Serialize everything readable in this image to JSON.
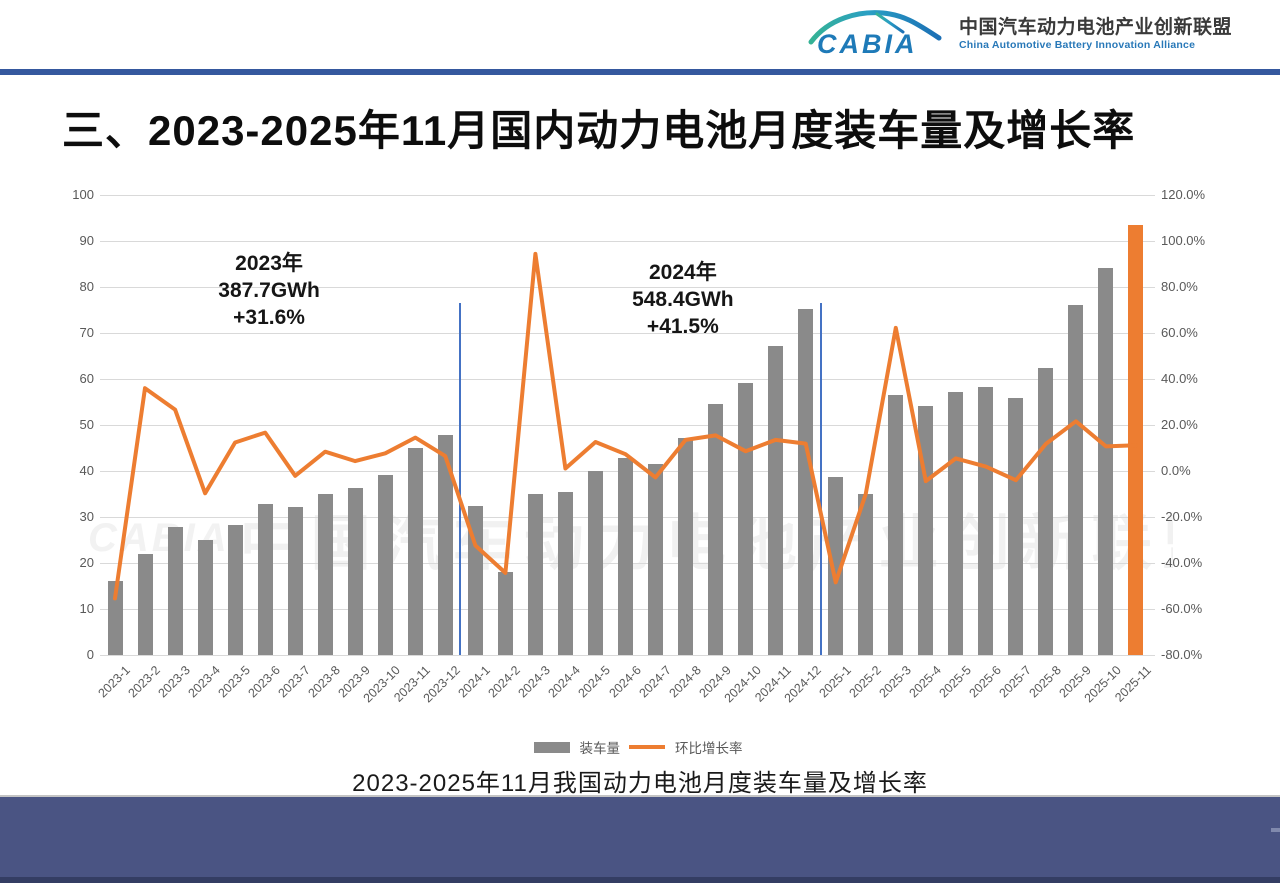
{
  "header": {
    "logo_text": "CABIA",
    "org_name_zh": "中国汽车动力电池产业创新联盟",
    "org_name_en": "China Automotive Battery Innovation Alliance"
  },
  "title": "三、2023-2025年11月国内动力电池月度装车量及增长率",
  "chart_data": {
    "type": "combo",
    "categories": [
      "2023-1",
      "2023-2",
      "2023-3",
      "2023-4",
      "2023-5",
      "2023-6",
      "2023-7",
      "2023-8",
      "2023-9",
      "2023-10",
      "2023-11",
      "2023-12",
      "2024-1",
      "2024-2",
      "2024-3",
      "2024-4",
      "2024-5",
      "2024-6",
      "2024-7",
      "2024-8",
      "2024-9",
      "2024-10",
      "2024-11",
      "2024-12",
      "2025-1",
      "2025-2",
      "2025-3",
      "2025-4",
      "2025-5",
      "2025-6",
      "2025-7",
      "2025-8",
      "2025-9",
      "2025-10",
      "2025-11"
    ],
    "series": [
      {
        "name": "装车量",
        "type": "bar",
        "unit": "GWh",
        "color": "#8a8a8a",
        "last_bar_color": "#ED7D31",
        "values": [
          16.1,
          21.9,
          27.8,
          25.1,
          28.2,
          32.9,
          32.2,
          34.9,
          36.4,
          39.2,
          44.9,
          47.8,
          32.3,
          18.0,
          35.0,
          35.4,
          39.9,
          42.8,
          41.6,
          47.2,
          54.5,
          59.2,
          67.2,
          75.2,
          38.8,
          34.9,
          56.6,
          54.1,
          57.1,
          58.2,
          55.9,
          62.5,
          76.0,
          84.1,
          93.5
        ]
      },
      {
        "name": "环比增长率",
        "type": "line",
        "unit": "%",
        "color": "#ED7D31",
        "values": [
          -55.4,
          36.0,
          26.7,
          -9.7,
          12.4,
          16.7,
          -2.1,
          8.4,
          4.3,
          7.7,
          14.5,
          6.5,
          -32.4,
          -44.3,
          94.4,
          1.1,
          12.6,
          7.3,
          -2.8,
          13.5,
          15.5,
          8.6,
          13.5,
          11.9,
          -48.4,
          -10.1,
          62.2,
          -4.4,
          5.5,
          1.9,
          -4.0,
          11.8,
          21.6,
          10.7,
          11.2
        ]
      }
    ],
    "left_axis": {
      "min": 0,
      "max": 100,
      "step": 10
    },
    "right_axis": {
      "min": -80,
      "max": 120,
      "step": 20,
      "suffix": "%"
    },
    "grid": true,
    "legend_position": "bottom",
    "annotations": [
      {
        "lines": [
          "2023年",
          "387.7GWh",
          "+31.6%"
        ],
        "anchor_index": 5.63,
        "top_value": 88
      },
      {
        "lines": [
          "2024年",
          "548.4GWh",
          "+41.5%"
        ],
        "anchor_index": 19.41,
        "top_value": 86
      }
    ],
    "year_dividers_after": [
      "2023-12",
      "2024-12"
    ]
  },
  "caption": "2023-2025年11月我国动力电池月度装车量及增长率",
  "watermark_text": "中国汽车动力电池产业创新联盟"
}
